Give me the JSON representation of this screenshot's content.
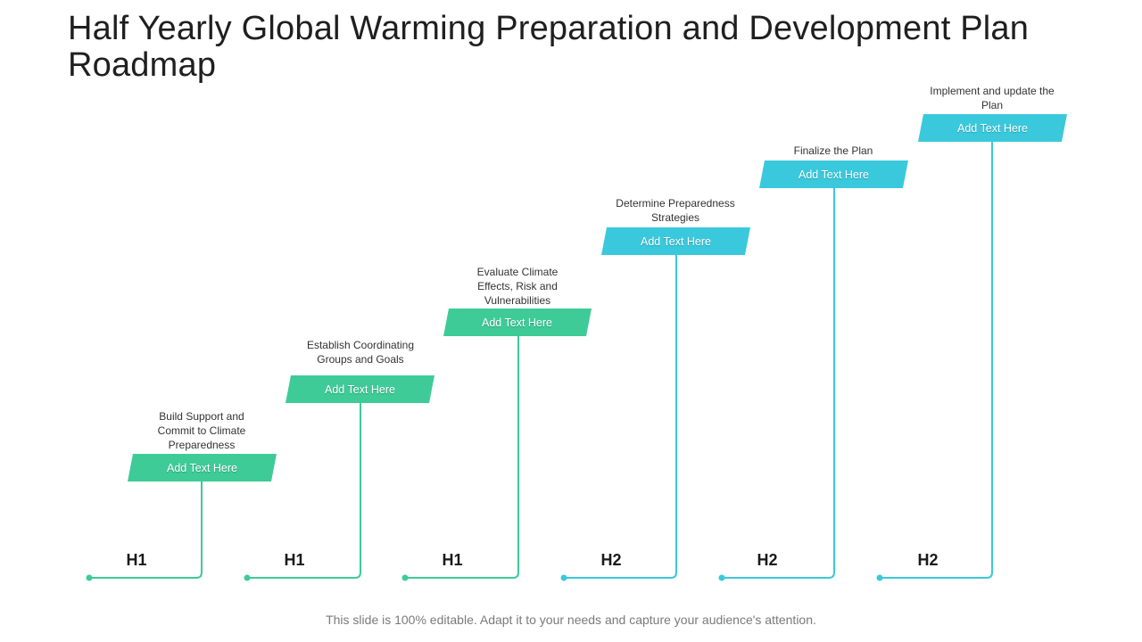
{
  "title": "Half Yearly Global Warming Preparation and Development Plan Roadmap",
  "footer": "This slide is 100% editable. Adapt it to your needs and capture your audience's attention.",
  "colors": {
    "green": "#3ecb97",
    "cyan": "#3ac9dc"
  },
  "steps": [
    {
      "caption": "Build Support and Commit to Climate Preparedness",
      "box_label": "Add Text Here",
      "half": "H1",
      "color": "green"
    },
    {
      "caption": "Establish Coordinating Groups and Goals",
      "box_label": "Add Text Here",
      "half": "H1",
      "color": "green"
    },
    {
      "caption": "Evaluate Climate Effects, Risk and Vulnerabilities",
      "box_label": "Add Text Here",
      "half": "H1",
      "color": "green"
    },
    {
      "caption": "Determine Preparedness Strategies",
      "box_label": "Add Text Here",
      "half": "H2",
      "color": "cyan"
    },
    {
      "caption": "Finalize the Plan",
      "box_label": "Add Text Here",
      "half": "H2",
      "color": "cyan"
    },
    {
      "caption": "Implement and update the Plan",
      "box_label": "Add Text Here",
      "half": "H2",
      "color": "cyan"
    }
  ]
}
